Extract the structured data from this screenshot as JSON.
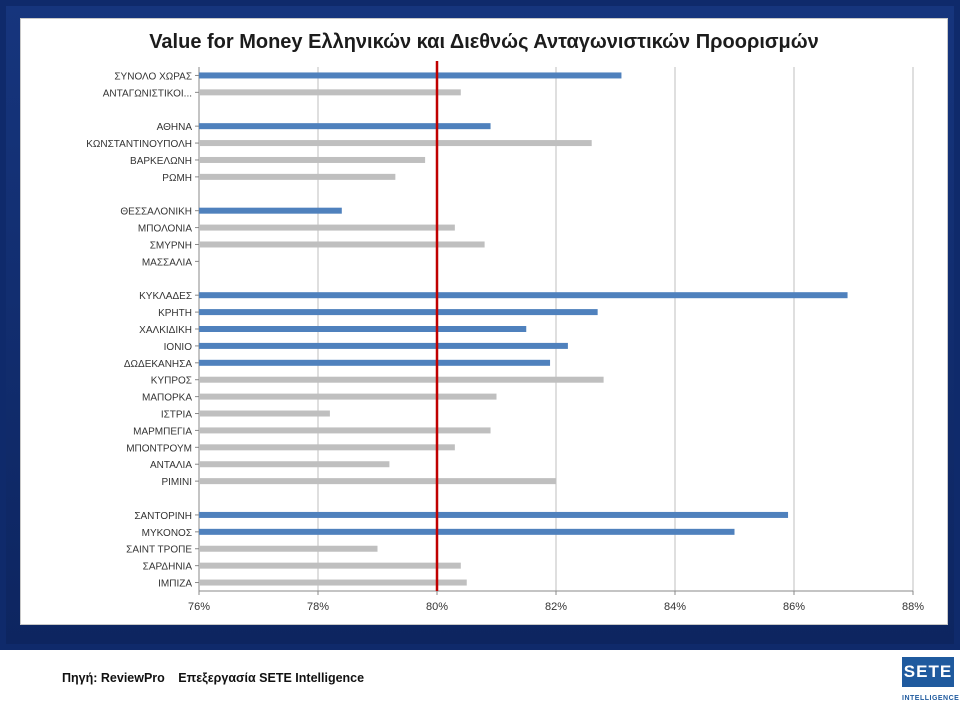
{
  "title": "Value for Money Ελληνικών και Διεθνώς Ανταγωνιστικών Προορισμών",
  "footer": {
    "source": "Πηγή: ReviewPro",
    "processing": "Επεξεργασία SETE Intelligence"
  },
  "logo": {
    "main": "SETE",
    "sub": "INTELLIGENCE"
  },
  "colors": {
    "greek": "#4f81bd",
    "international": "#bfbfbf",
    "reference_line": "#c00000",
    "grid": "#bfbfbf"
  },
  "chart_data": {
    "type": "bar",
    "orientation": "horizontal",
    "title": "Value for Money Ελληνικών και Διεθνώς Ανταγωνιστικών Προορισμών",
    "xlim": [
      76,
      88
    ],
    "x_ticks": [
      "76%",
      "78%",
      "80%",
      "82%",
      "84%",
      "86%",
      "88%"
    ],
    "x_tick_values": [
      76,
      78,
      80,
      82,
      84,
      86,
      88
    ],
    "reference_line": 80,
    "grid": true,
    "rows": [
      {
        "label": "ΣΥΝΟΛΟ ΧΩΡΑΣ",
        "value": 83.1,
        "group": "greek"
      },
      {
        "label": "ΑΝΤΑΓΩΝΙΣΤΙΚΟΙ...",
        "value": 80.4,
        "group": "international"
      },
      {
        "label": "",
        "value": null,
        "group": null
      },
      {
        "label": "ΑΘΗΝΑ",
        "value": 80.9,
        "group": "greek"
      },
      {
        "label": "ΚΩΝΣΤΑΝΤΙΝΟΥΠΟΛΗ",
        "value": 82.6,
        "group": "international"
      },
      {
        "label": "ΒΑΡΚΕΛΩΝΗ",
        "value": 79.8,
        "group": "international"
      },
      {
        "label": "ΡΩΜΗ",
        "value": 79.3,
        "group": "international"
      },
      {
        "label": "",
        "value": null,
        "group": null
      },
      {
        "label": "ΘΕΣΣΑΛΟΝΙΚΗ",
        "value": 78.4,
        "group": "greek"
      },
      {
        "label": "ΜΠΟΛΟΝΙΑ",
        "value": 80.3,
        "group": "international"
      },
      {
        "label": "ΣΜΥΡΝΗ",
        "value": 80.8,
        "group": "international"
      },
      {
        "label": "ΜΑΣΣΑΛΙΑ",
        "value": null,
        "group": "international"
      },
      {
        "label": "",
        "value": null,
        "group": null
      },
      {
        "label": "ΚΥΚΛΑΔΕΣ",
        "value": 86.9,
        "group": "greek"
      },
      {
        "label": "ΚΡΗΤΗ",
        "value": 82.7,
        "group": "greek"
      },
      {
        "label": "ΧΑΛΚΙΔΙΚΗ",
        "value": 81.5,
        "group": "greek"
      },
      {
        "label": "ΙΟΝΙΟ",
        "value": 82.2,
        "group": "greek"
      },
      {
        "label": "ΔΩΔΕΚΑΝΗΣΑ",
        "value": 81.9,
        "group": "greek"
      },
      {
        "label": "ΚΥΠΡΟΣ",
        "value": 82.8,
        "group": "international"
      },
      {
        "label": "ΜΑΠΟΡΚΑ",
        "value": 81.0,
        "group": "international"
      },
      {
        "label": "ΙΣΤΡΙΑ",
        "value": 78.2,
        "group": "international"
      },
      {
        "label": "ΜΑΡΜΠΕΓΙΑ",
        "value": 80.9,
        "group": "international"
      },
      {
        "label": "ΜΠΟΝΤΡΟΥΜ",
        "value": 80.3,
        "group": "international"
      },
      {
        "label": "ΑΝΤΑΛΙΑ",
        "value": 79.2,
        "group": "international"
      },
      {
        "label": "ΡΙΜΙΝΙ",
        "value": 82.0,
        "group": "international"
      },
      {
        "label": "",
        "value": null,
        "group": null
      },
      {
        "label": "ΣΑΝΤΟΡΙΝΗ",
        "value": 85.9,
        "group": "greek"
      },
      {
        "label": "ΜΥΚΟΝΟΣ",
        "value": 85.0,
        "group": "greek"
      },
      {
        "label": "ΣΑΙΝΤ ΤΡΟΠΕ",
        "value": 79.0,
        "group": "international"
      },
      {
        "label": "ΣΑΡΔΗΝΙΑ",
        "value": 80.4,
        "group": "international"
      },
      {
        "label": "ΙΜΠΙΖΑ",
        "value": 80.5,
        "group": "international"
      }
    ]
  }
}
